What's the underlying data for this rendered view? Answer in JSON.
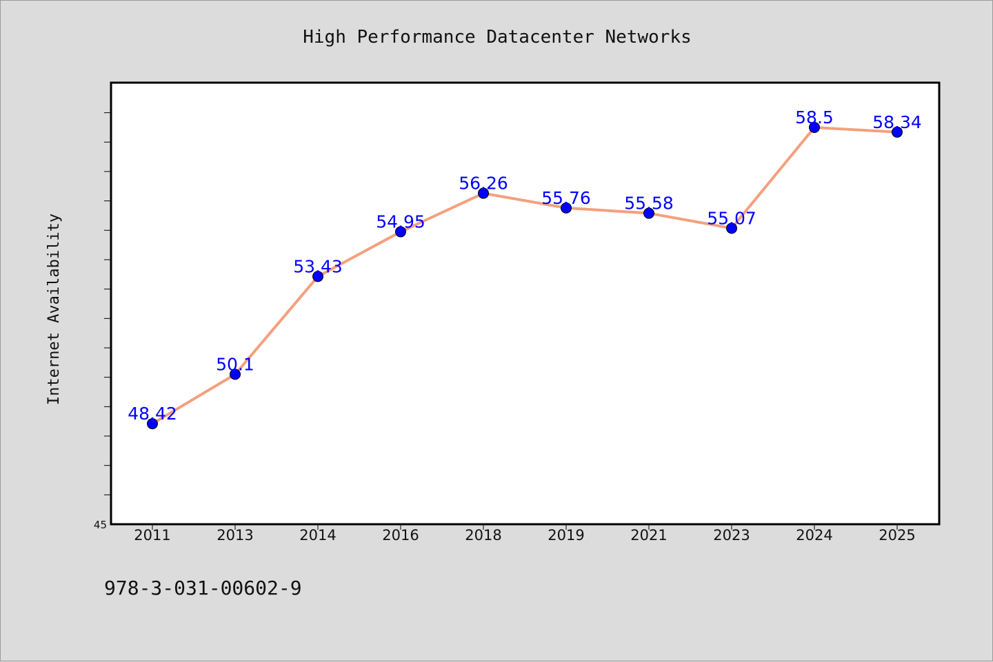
{
  "chart_data": {
    "type": "line",
    "title": "High Performance Datacenter Networks",
    "xlabel": "",
    "ylabel": "Internet Availability",
    "categories": [
      "2011",
      "2013",
      "2014",
      "2016",
      "2018",
      "2019",
      "2021",
      "2023",
      "2024",
      "2025"
    ],
    "series": [
      {
        "values": [
          48.42,
          50.1,
          53.43,
          54.95,
          56.26,
          55.76,
          55.58,
          55.07,
          58.5,
          58.34
        ],
        "data_labels": [
          "48.42",
          "50.1",
          "53.43",
          "54.95",
          "56.26",
          "55.76",
          "55.58",
          "55.07",
          "58.5",
          "58.34"
        ],
        "line_color": "#f4a07e",
        "marker_color": "#0000ff"
      }
    ],
    "ylim": [
      45,
      60
    ],
    "yticks_labeled": [
      "45"
    ],
    "grid": false,
    "legend": "none"
  },
  "footer": {
    "isbn": "978-3-031-00602-9"
  },
  "colors": {
    "background": "#dcdcdc",
    "plot_background": "#ffffff",
    "line": "#f4a07e",
    "marker": "#0000ff",
    "data_label": "#0000ff"
  }
}
